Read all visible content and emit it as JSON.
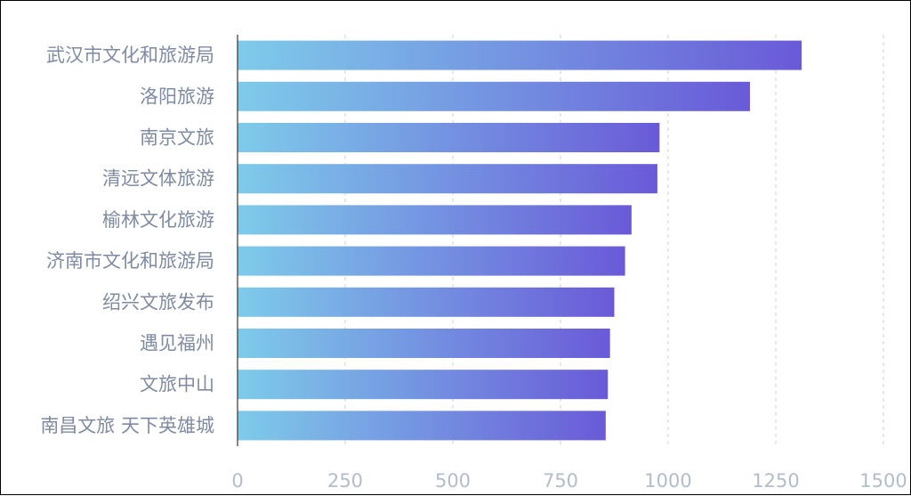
{
  "chart_data": {
    "type": "bar",
    "orientation": "horizontal",
    "categories": [
      "武汉市文化和旅游局",
      "洛阳旅游",
      "南京文旅",
      "清远文体旅游",
      "榆林文化旅游",
      "济南市文化和旅游局",
      "绍兴文旅发布",
      "遇见福州",
      "文旅中山",
      "南昌文旅 天下英雄城"
    ],
    "values": [
      1310,
      1190,
      980,
      975,
      915,
      900,
      875,
      865,
      860,
      855
    ],
    "xlim": [
      0,
      1500
    ],
    "xticks": [
      "0",
      "250",
      "500",
      "750",
      "1000",
      "1250",
      "1500"
    ],
    "grid": true,
    "gradient_colors": [
      "#7ecbea",
      "#6a5ad8"
    ]
  }
}
